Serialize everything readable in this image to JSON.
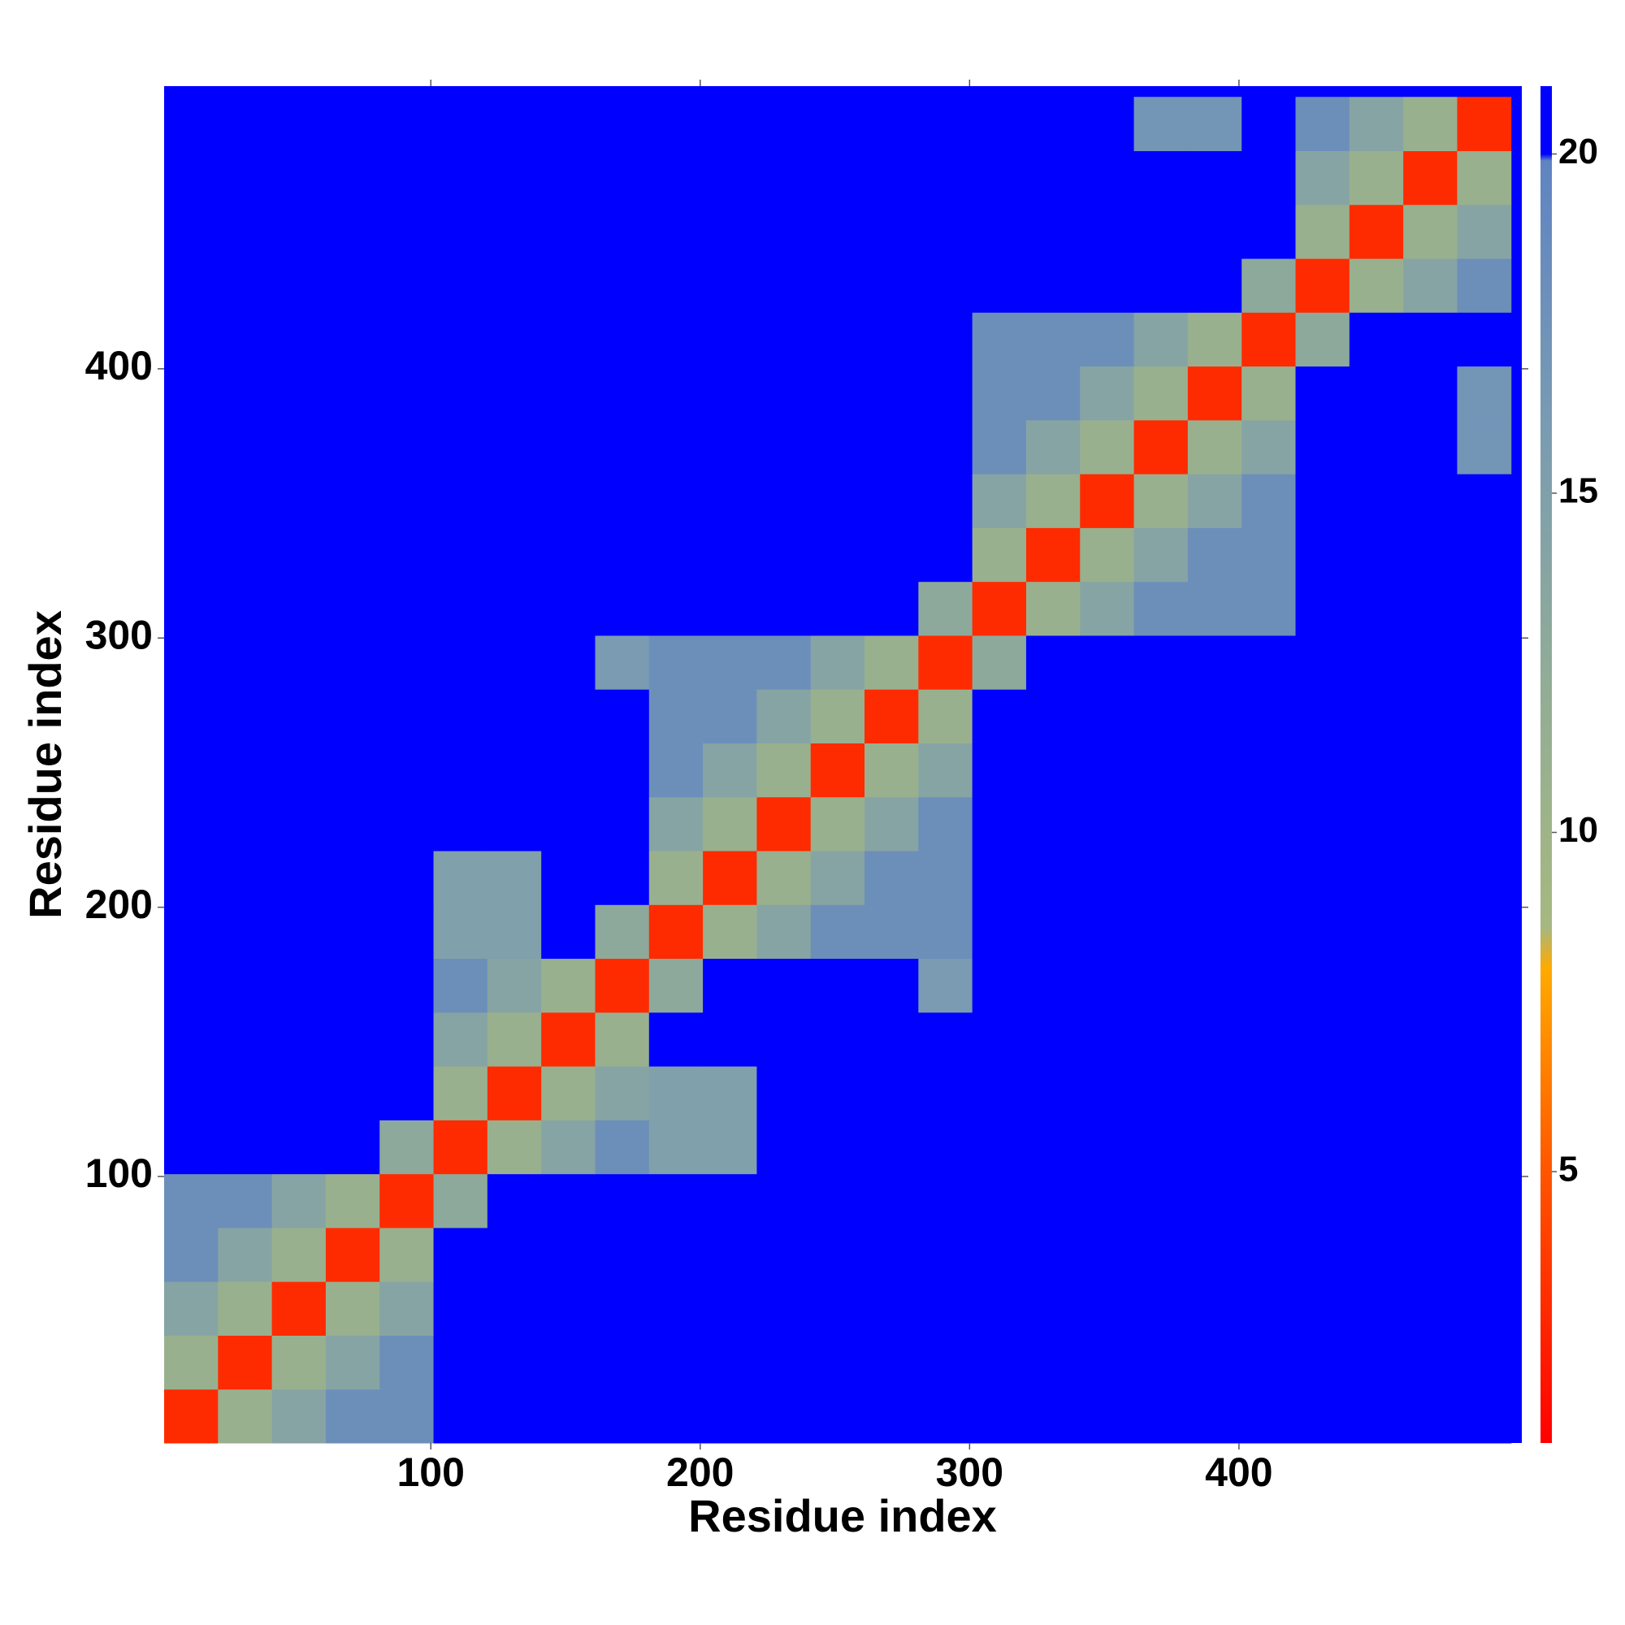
{
  "chart_data": {
    "type": "heatmap",
    "xlabel": "Residue index",
    "ylabel": "Residue index",
    "xlim": [
      1,
      505
    ],
    "ylim": [
      1,
      505
    ],
    "xticks": [
      100,
      200,
      300,
      400
    ],
    "yticks": [
      100,
      200,
      300,
      400
    ],
    "x_bins": [
      1,
      21,
      41,
      61,
      81,
      101,
      121,
      141,
      161,
      181,
      201,
      221,
      241,
      261,
      281,
      301,
      321,
      341,
      361,
      381,
      401,
      421,
      441,
      461,
      481,
      501
    ],
    "y_bins": [
      1,
      21,
      41,
      61,
      81,
      101,
      121,
      141,
      161,
      181,
      201,
      221,
      241,
      261,
      281,
      301,
      321,
      341,
      361,
      381,
      401,
      421,
      441,
      461,
      481,
      501
    ],
    "clim": [
      1,
      21
    ],
    "cticks": [
      5,
      10,
      15,
      20
    ],
    "colorscale": [
      [
        1,
        "#ff0000"
      ],
      [
        5,
        "#ff5500"
      ],
      [
        8,
        "#ffaa00"
      ],
      [
        8.6,
        "#a6b880"
      ],
      [
        12,
        "#93ad95"
      ],
      [
        16,
        "#7a9bb2"
      ],
      [
        19.9,
        "#5f84c2"
      ],
      [
        20,
        "#0000ff"
      ],
      [
        21,
        "#0000ff"
      ]
    ],
    "values": [
      [
        3,
        11,
        14,
        18,
        18,
        21,
        21,
        21,
        21,
        21,
        21,
        21,
        21,
        21,
        21,
        21,
        21,
        21,
        21,
        21,
        21,
        21,
        21,
        21,
        21
      ],
      [
        11,
        3,
        11,
        14,
        18,
        21,
        21,
        21,
        21,
        21,
        21,
        21,
        21,
        21,
        21,
        21,
        21,
        21,
        21,
        21,
        21,
        21,
        21,
        21,
        21
      ],
      [
        14,
        11,
        3,
        11,
        14,
        21,
        21,
        21,
        21,
        21,
        21,
        21,
        21,
        21,
        21,
        21,
        21,
        21,
        21,
        21,
        21,
        21,
        21,
        21,
        21
      ],
      [
        18,
        14,
        11,
        3,
        11,
        21,
        21,
        21,
        21,
        21,
        21,
        21,
        21,
        21,
        21,
        21,
        21,
        21,
        21,
        21,
        21,
        21,
        21,
        21,
        21
      ],
      [
        18,
        18,
        14,
        11,
        3,
        13,
        21,
        21,
        21,
        21,
        21,
        21,
        21,
        21,
        21,
        21,
        21,
        21,
        21,
        21,
        21,
        21,
        21,
        21,
        21
      ],
      [
        21,
        21,
        21,
        21,
        13,
        3,
        11,
        14,
        18,
        15,
        15,
        21,
        21,
        21,
        21,
        21,
        21,
        21,
        21,
        21,
        21,
        21,
        21,
        21,
        21
      ],
      [
        21,
        21,
        21,
        21,
        21,
        11,
        3,
        11,
        14,
        15,
        15,
        21,
        21,
        21,
        21,
        21,
        21,
        21,
        21,
        21,
        21,
        21,
        21,
        21,
        21
      ],
      [
        21,
        21,
        21,
        21,
        21,
        14,
        11,
        3,
        11,
        21,
        21,
        21,
        21,
        21,
        21,
        21,
        21,
        21,
        21,
        21,
        21,
        21,
        21,
        21,
        21
      ],
      [
        21,
        21,
        21,
        21,
        21,
        18,
        14,
        11,
        3,
        13,
        21,
        21,
        21,
        21,
        16,
        21,
        21,
        21,
        21,
        21,
        21,
        21,
        21,
        21,
        21
      ],
      [
        21,
        21,
        21,
        21,
        21,
        15,
        15,
        21,
        13,
        3,
        11,
        14,
        18,
        18,
        18,
        21,
        21,
        21,
        21,
        21,
        21,
        21,
        21,
        21,
        21
      ],
      [
        21,
        21,
        21,
        21,
        21,
        15,
        15,
        21,
        21,
        11,
        3,
        11,
        14,
        18,
        18,
        21,
        21,
        21,
        21,
        21,
        21,
        21,
        21,
        21,
        21
      ],
      [
        21,
        21,
        21,
        21,
        21,
        21,
        21,
        21,
        21,
        14,
        11,
        3,
        11,
        14,
        18,
        21,
        21,
        21,
        21,
        21,
        21,
        21,
        21,
        21,
        21
      ],
      [
        21,
        21,
        21,
        21,
        21,
        21,
        21,
        21,
        21,
        18,
        14,
        11,
        3,
        11,
        14,
        21,
        21,
        21,
        21,
        21,
        21,
        21,
        21,
        21,
        21
      ],
      [
        21,
        21,
        21,
        21,
        21,
        21,
        21,
        21,
        21,
        18,
        18,
        14,
        11,
        3,
        11,
        21,
        21,
        21,
        21,
        21,
        21,
        21,
        21,
        21,
        21
      ],
      [
        21,
        21,
        21,
        21,
        21,
        21,
        21,
        21,
        16,
        18,
        18,
        18,
        14,
        11,
        3,
        13,
        21,
        21,
        21,
        21,
        21,
        21,
        21,
        21,
        21
      ],
      [
        21,
        21,
        21,
        21,
        21,
        21,
        21,
        21,
        21,
        21,
        21,
        21,
        21,
        21,
        13,
        3,
        11,
        14,
        18,
        18,
        18,
        21,
        21,
        21,
        21
      ],
      [
        21,
        21,
        21,
        21,
        21,
        21,
        21,
        21,
        21,
        21,
        21,
        21,
        21,
        21,
        21,
        11,
        3,
        11,
        14,
        18,
        18,
        21,
        21,
        21,
        21
      ],
      [
        21,
        21,
        21,
        21,
        21,
        21,
        21,
        21,
        21,
        21,
        21,
        21,
        21,
        21,
        21,
        14,
        11,
        3,
        11,
        14,
        18,
        21,
        21,
        21,
        21
      ],
      [
        21,
        21,
        21,
        21,
        21,
        21,
        21,
        21,
        21,
        21,
        21,
        21,
        21,
        21,
        21,
        18,
        14,
        11,
        3,
        11,
        14,
        21,
        21,
        21,
        17
      ],
      [
        21,
        21,
        21,
        21,
        21,
        21,
        21,
        21,
        21,
        21,
        21,
        21,
        21,
        21,
        21,
        18,
        18,
        14,
        11,
        3,
        11,
        21,
        21,
        21,
        17
      ],
      [
        21,
        21,
        21,
        21,
        21,
        21,
        21,
        21,
        21,
        21,
        21,
        21,
        21,
        21,
        21,
        18,
        18,
        18,
        14,
        11,
        3,
        13,
        21,
        21,
        21
      ],
      [
        21,
        21,
        21,
        21,
        21,
        21,
        21,
        21,
        21,
        21,
        21,
        21,
        21,
        21,
        21,
        21,
        21,
        21,
        21,
        21,
        13,
        3,
        11,
        14,
        18
      ],
      [
        21,
        21,
        21,
        21,
        21,
        21,
        21,
        21,
        21,
        21,
        21,
        21,
        21,
        21,
        21,
        21,
        21,
        21,
        21,
        21,
        21,
        11,
        3,
        11,
        14
      ],
      [
        21,
        21,
        21,
        21,
        21,
        21,
        21,
        21,
        21,
        21,
        21,
        21,
        21,
        21,
        21,
        21,
        21,
        21,
        21,
        21,
        21,
        14,
        11,
        3,
        11
      ],
      [
        21,
        21,
        21,
        21,
        21,
        21,
        21,
        21,
        21,
        21,
        21,
        21,
        21,
        21,
        21,
        21,
        21,
        21,
        17,
        17,
        21,
        18,
        14,
        11,
        3
      ]
    ]
  }
}
